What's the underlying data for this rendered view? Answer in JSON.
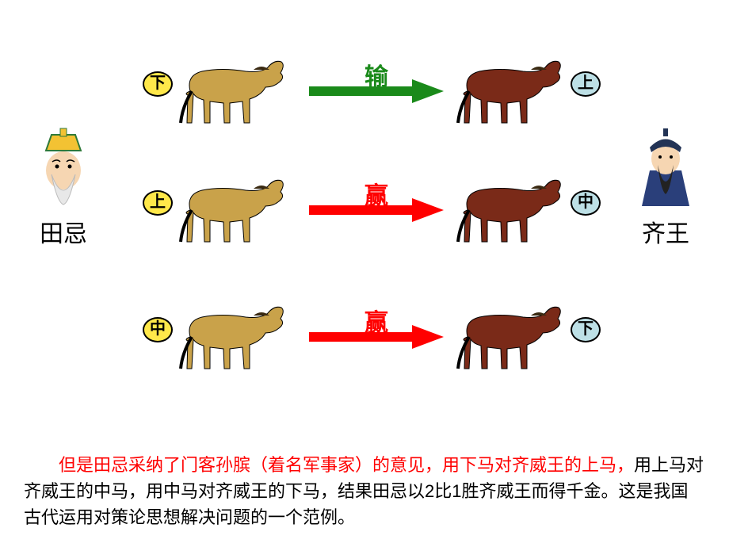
{
  "left_person": {
    "label": "田忌",
    "hat_color": "#f3c233",
    "face_color": "#f6d6b2",
    "beard_color": "#e8e8e8",
    "hat_outline": "#2f7a3a"
  },
  "right_person": {
    "label": "齐王",
    "hat_color": "#223355",
    "robe_color": "#2a3f7a",
    "face_color": "#f6d6b2",
    "beard_color": "#222222"
  },
  "rows": [
    {
      "left_badge": "下",
      "left_badge_bg": "#ffe84a",
      "right_badge": "上",
      "right_badge_bg": "#bde0e6",
      "arrow_label": "输",
      "arrow_color": "#1a8a1a",
      "label_color": "#1a8a1a",
      "left_horse_color": "#c9a24a",
      "right_horse_color": "#7a2a18"
    },
    {
      "left_badge": "上",
      "left_badge_bg": "#ffe84a",
      "right_badge": "中",
      "right_badge_bg": "#bde0e6",
      "arrow_label": "赢",
      "arrow_color": "#ff0000",
      "label_color": "#ff0000",
      "left_horse_color": "#c9a24a",
      "right_horse_color": "#7a2a18"
    },
    {
      "left_badge": "中",
      "left_badge_bg": "#ffe84a",
      "right_badge": "下",
      "right_badge_bg": "#bde0e6",
      "arrow_label": "赢",
      "arrow_color": "#ff0000",
      "label_color": "#ff0000",
      "left_horse_color": "#c9a24a",
      "right_horse_color": "#7a2a18"
    }
  ],
  "row_top": [
    60,
    210,
    370
  ],
  "caption": {
    "lead_indent": "　　",
    "lead": "但是田忌采纳了门客孙膑（着名军事家）的意见，用下马对齐威王的上马，",
    "rest": "用上马对齐威王的中马，用中马对齐威王的下马，结果田忌以2比1胜齐威王而得千金。这是我国古代运用对策论思想解决问题的一个范例。"
  }
}
